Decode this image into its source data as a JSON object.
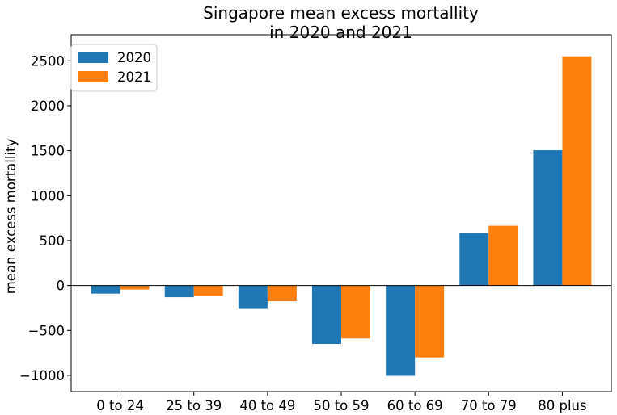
{
  "chart_data": {
    "type": "bar",
    "title": [
      "Singapore mean excess mortallity",
      "in 2020 and 2021"
    ],
    "xlabel": "",
    "ylabel": "mean excess mortallity",
    "categories": [
      "0 to 24",
      "25 to 39",
      "40 to 49",
      "50 to 59",
      "60 to 69",
      "70 to 79",
      "80 plus"
    ],
    "series": [
      {
        "name": "2020",
        "color": "#1f77b4",
        "values": [
          -90,
          -130,
          -260,
          -650,
          -1005,
          585,
          1505
        ]
      },
      {
        "name": "2021",
        "color": "#ff7f0e",
        "values": [
          -45,
          -115,
          -175,
          -590,
          -800,
          665,
          2550
        ]
      }
    ],
    "ylim": [
      -1180,
      2790
    ],
    "yticks": [
      -1000,
      -500,
      0,
      500,
      1000,
      1500,
      2000,
      2500
    ],
    "ytick_labels": [
      "−1000",
      "−500",
      "0",
      "500",
      "1000",
      "1500",
      "2000",
      "2500"
    ],
    "zero_line": true,
    "grid": false,
    "legend_position": "top-left"
  }
}
